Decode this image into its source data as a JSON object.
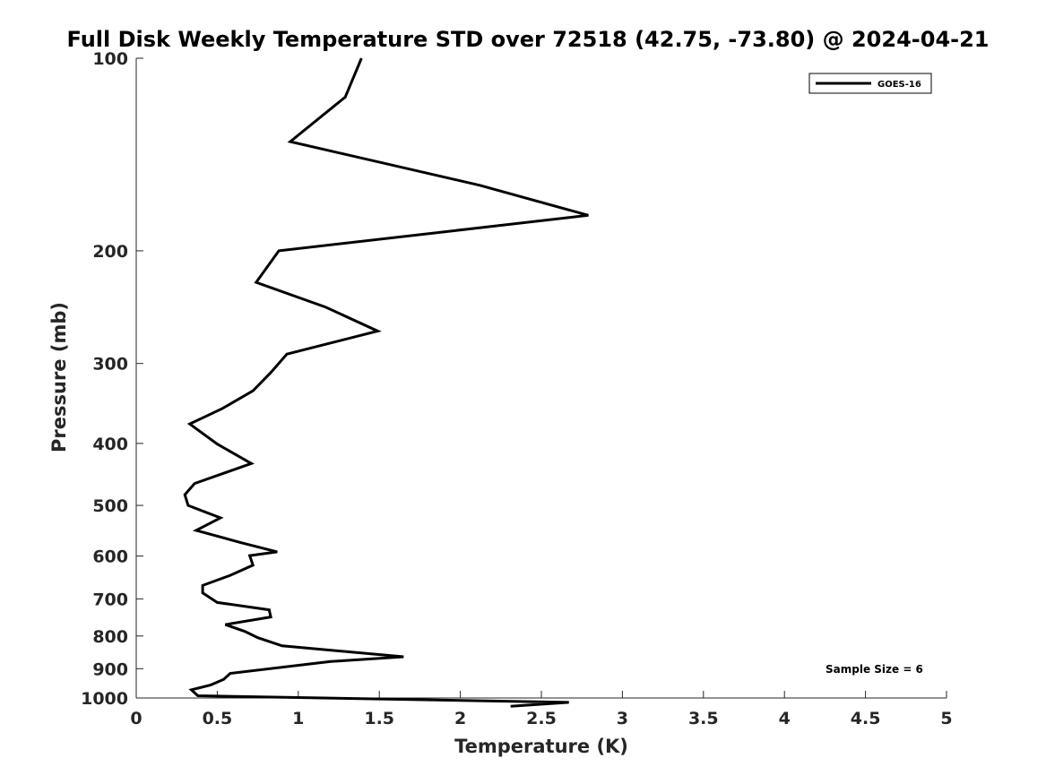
{
  "chart_data": {
    "type": "line",
    "title": "Full Disk Weekly Temperature STD over 72518 (42.75, -73.80) @ 2024-04-21",
    "xlabel": "Temperature (K)",
    "ylabel": "Pressure (mb)",
    "xlim": [
      0,
      5
    ],
    "ylim": [
      100,
      1000
    ],
    "y_scale": "log",
    "y_reversed": true,
    "x_ticks": [
      0,
      0.5,
      1,
      1.5,
      2,
      2.5,
      3,
      3.5,
      4,
      4.5,
      5
    ],
    "x_tick_labels": [
      "0",
      "0.5",
      "1",
      "1.5",
      "2",
      "2.5",
      "3",
      "3.5",
      "4",
      "4.5",
      "5"
    ],
    "y_ticks": [
      100,
      200,
      300,
      400,
      500,
      600,
      700,
      800,
      900,
      1000
    ],
    "y_tick_labels": [
      "100",
      "200",
      "300",
      "400",
      "500",
      "600",
      "700",
      "800",
      "900",
      "1000"
    ],
    "grid": false,
    "legend_position": "top-right",
    "series": [
      {
        "name": "GOES-16",
        "color": "#000000",
        "x": [
          1.39,
          1.29,
          0.95,
          2.12,
          2.79,
          0.88,
          0.74,
          1.17,
          1.49,
          0.93,
          0.83,
          0.72,
          0.53,
          0.33,
          0.5,
          0.71,
          0.36,
          0.3,
          0.32,
          0.52,
          0.37,
          0.65,
          0.87,
          0.7,
          0.72,
          0.58,
          0.41,
          0.41,
          0.5,
          0.82,
          0.83,
          0.55,
          0.67,
          0.75,
          0.9,
          1.65,
          1.2,
          0.58,
          0.54,
          0.46,
          0.34,
          0.38,
          2.67,
          2.31
        ],
        "y": [
          100,
          115,
          135,
          158,
          176,
          200,
          224,
          245,
          267,
          290,
          310,
          331,
          353,
          373,
          401,
          430,
          462,
          481,
          500,
          523,
          547,
          572,
          591,
          599,
          620,
          643,
          667,
          685,
          709,
          728,
          747,
          768,
          787,
          805,
          829,
          862,
          877,
          915,
          935,
          954,
          971,
          992,
          1016,
          1030
        ]
      }
    ],
    "annotations": [
      "Sample Size = 6"
    ]
  }
}
